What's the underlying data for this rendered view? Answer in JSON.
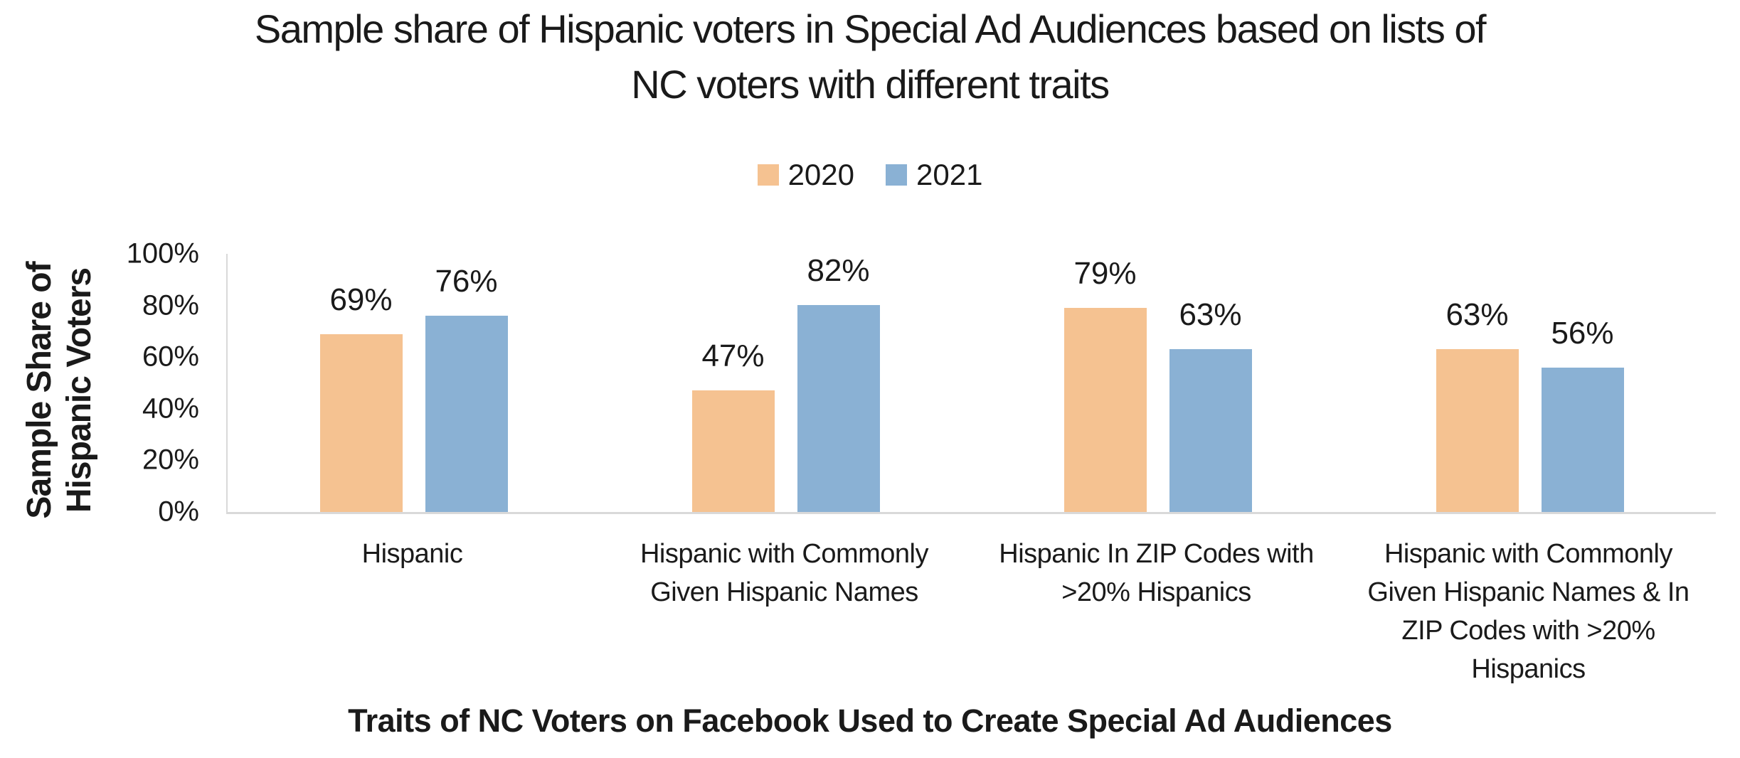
{
  "chart_data": {
    "type": "bar",
    "title": "Sample share of Hispanic voters in Special Ad Audiences based on lists of NC voters with different traits",
    "title_lines": [
      "Sample share of Hispanic voters in Special Ad Audiences based on lists of",
      "NC voters with different traits"
    ],
    "xlabel": "Traits of NC Voters on Facebook Used to Create Special Ad Audiences",
    "ylabel": "Sample Share of Hispanic Voters",
    "ylabel_lines": [
      "Sample Share of",
      "Hispanic Voters"
    ],
    "ylim": [
      0,
      100
    ],
    "yticks": [
      "0%",
      "20%",
      "40%",
      "60%",
      "80%",
      "100%"
    ],
    "grid": false,
    "legend_position": "top-center",
    "value_label_suffix": "%",
    "categories": [
      "Hispanic",
      "Hispanic with Commonly Given Hispanic Names",
      "Hispanic In ZIP Codes with >20% Hispanics",
      "Hispanic with Commonly Given Hispanic Names & In ZIP Codes with >20% Hispanics"
    ],
    "series": [
      {
        "name": "2020",
        "color": "#F5C291",
        "values": [
          69,
          47,
          79,
          63
        ]
      },
      {
        "name": "2021",
        "color": "#8AB1D4",
        "values": [
          76,
          82,
          63,
          56
        ]
      }
    ]
  },
  "style": {
    "background": "#FFFFFF",
    "text_color": "#1A1A1A",
    "axis_line_color": "#D9D9D9"
  }
}
